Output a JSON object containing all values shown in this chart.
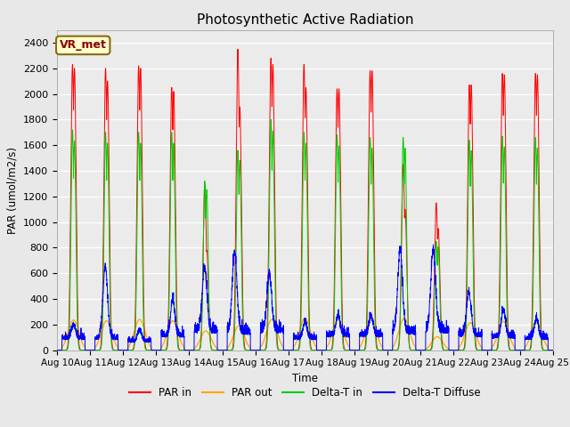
{
  "title": "Photosynthetic Active Radiation",
  "ylabel": "PAR (umol/m2/s)",
  "xlabel": "Time",
  "annotation_text": "VR_met",
  "fig_bg_color": "#e8e8e8",
  "plot_bg_color": "#ebebeb",
  "legend_labels": [
    "PAR in",
    "PAR out",
    "Delta-T in",
    "Delta-T Diffuse"
  ],
  "legend_colors": [
    "#ff0000",
    "#ffa500",
    "#00cc00",
    "#0000ff"
  ],
  "ylim": [
    0,
    2500
  ],
  "yticks": [
    0,
    200,
    400,
    600,
    800,
    1000,
    1200,
    1400,
    1600,
    1800,
    2000,
    2200,
    2400
  ],
  "start_day": 10,
  "end_day": 25,
  "days": 15,
  "points_per_day": 288,
  "par_in_peaks": [
    2230,
    2200,
    2220,
    2050,
    1290,
    2350,
    2280,
    2230,
    2040,
    2180,
    1450,
    1150,
    2070,
    2160,
    2160
  ],
  "par_in_peaks2": [
    2200,
    2100,
    2200,
    2020,
    780,
    1900,
    2230,
    2050,
    2040,
    2180,
    1100,
    950,
    2070,
    2150,
    2150
  ],
  "par_out_peaks": [
    235,
    230,
    240,
    230,
    150,
    190,
    240,
    250,
    240,
    240,
    250,
    105,
    215,
    225,
    225
  ],
  "delta_t_peaks": [
    1720,
    1700,
    1700,
    1700,
    1320,
    1560,
    1800,
    1700,
    1680,
    1660,
    1660,
    850,
    1640,
    1670,
    1660
  ],
  "diffuse_peaks": [
    100,
    550,
    80,
    280,
    490,
    620,
    430,
    120,
    150,
    150,
    640,
    630,
    330,
    210,
    150
  ],
  "diffuse_base": [
    80,
    80,
    60,
    100,
    130,
    120,
    130,
    80,
    100,
    100,
    120,
    130,
    100,
    90,
    80
  ]
}
